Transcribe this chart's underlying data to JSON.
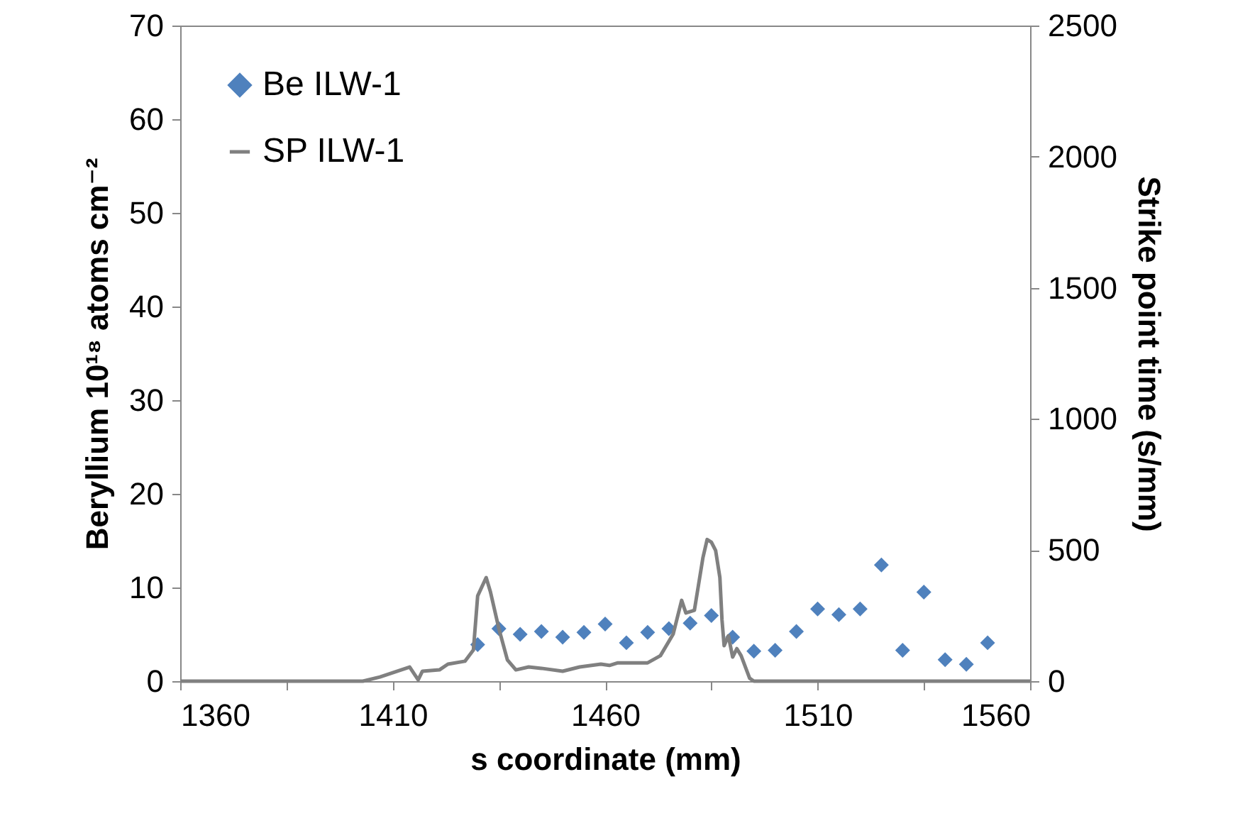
{
  "chart_data": {
    "type": "scatter",
    "xlabel": "s coordinate (mm)",
    "ylabel": "Beryllium 10¹⁸ atoms cm⁻²",
    "y2label": "Strike point time (s/mm)",
    "xlim": [
      1360,
      1560
    ],
    "xticks": [
      1360,
      {
        "value": 1385,
        "label": null
      },
      1410,
      {
        "value": 1435,
        "label": null
      },
      1460,
      {
        "value": 1485,
        "label": null
      },
      1510,
      {
        "value": 1535,
        "label": null
      },
      1560
    ],
    "ylim": [
      0,
      70
    ],
    "yticks": [
      0,
      10,
      20,
      30,
      40,
      50,
      60,
      70
    ],
    "y2lim": [
      0,
      2500
    ],
    "y2ticks": [
      0,
      500,
      1000,
      1500,
      2000,
      2500
    ],
    "legend": "top left",
    "grid": false,
    "series": [
      {
        "name": "Be ILW-1",
        "color": "#4f81bd",
        "marker": "diamond",
        "x": [
          1430,
          1435,
          1440,
          1445,
          1450,
          1455,
          1460,
          1465,
          1470,
          1475,
          1480,
          1485,
          1490,
          1495,
          1500,
          1505,
          1510,
          1515,
          1520,
          1525,
          1530,
          1535,
          1540,
          1545,
          1550
        ],
        "values": [
          3.9,
          5.6,
          5.0,
          5.3,
          4.7,
          5.2,
          6.1,
          4.1,
          5.2,
          5.6,
          6.2,
          7.0,
          4.7,
          3.2,
          3.3,
          5.3,
          7.7,
          7.1,
          7.7,
          12.4,
          3.3,
          9.5,
          2.3,
          1.8,
          4.1
        ]
      },
      {
        "name": "SP ILW-1",
        "type": "line",
        "axis": "y2",
        "color": "#808080",
        "line_style": "solid",
        "x": [
          1360,
          1403,
          1407,
          1412,
          1414,
          1416,
          1417,
          1421,
          1423,
          1427,
          1429,
          1430,
          1432,
          1433,
          1435,
          1437,
          1439,
          1442,
          1445,
          1450,
          1454,
          1459,
          1461,
          1463,
          1470,
          1473,
          1476,
          1478,
          1479,
          1481,
          1483,
          1484,
          1485,
          1486,
          1487,
          1487.5,
          1488,
          1489,
          1490,
          1491,
          1492,
          1494,
          1495,
          1560
        ],
        "values": [
          0,
          0,
          16,
          43,
          54,
          5,
          38,
          43,
          65,
          76,
          119,
          325,
          395,
          341,
          200,
          81,
          43,
          54,
          49,
          38,
          54,
          65,
          60,
          70,
          70,
          97,
          179,
          308,
          260,
          270,
          470,
          540,
          530,
          498,
          395,
          233,
          135,
          173,
          92,
          124,
          97,
          11,
          0,
          0
        ]
      }
    ]
  }
}
